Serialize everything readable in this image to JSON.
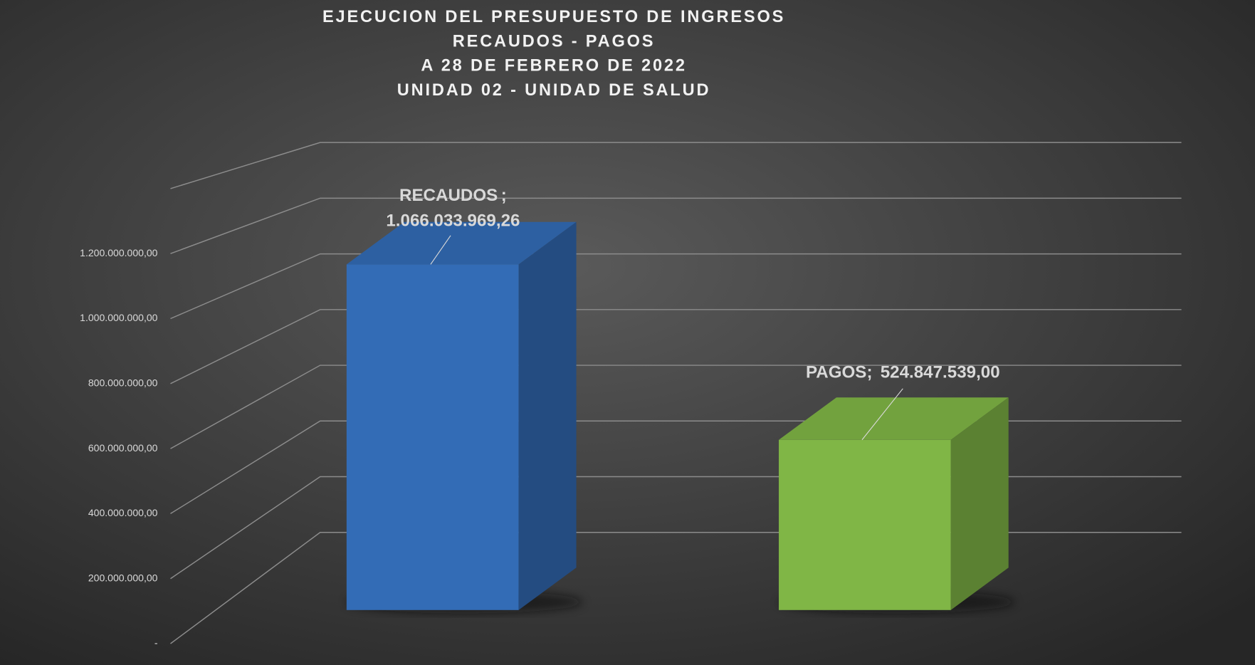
{
  "chart_data": {
    "type": "bar3d",
    "title": [
      "EJECUCION DEL PRESUPUESTO DE INGRESOS",
      "RECAUDOS - PAGOS",
      "A 28 DE FEBRERO DE 2022",
      "UNIDAD 02 - UNIDAD DE SALUD"
    ],
    "categories": [
      "RECAUDOS",
      "PAGOS"
    ],
    "label_separator": ";",
    "values": [
      1066033969.26,
      524847539.0
    ],
    "value_labels": [
      "1.066.033.969,26",
      "524.847.539,00"
    ],
    "colors": [
      "#3a7bd0",
      "#92d050"
    ],
    "ylim": [
      0,
      1400000000
    ],
    "yticks": [
      {
        "value": 0,
        "label": "-"
      },
      {
        "value": 200000000,
        "label": "200.000.000,00"
      },
      {
        "value": 400000000,
        "label": "400.000.000,00"
      },
      {
        "value": 600000000,
        "label": "600.000.000,00"
      },
      {
        "value": 800000000,
        "label": "800.000.000,00"
      },
      {
        "value": 1000000000,
        "label": "1.000.000.000,00"
      },
      {
        "value": 1200000000,
        "label": "1.200.000.000,00"
      }
    ],
    "grid": true
  }
}
